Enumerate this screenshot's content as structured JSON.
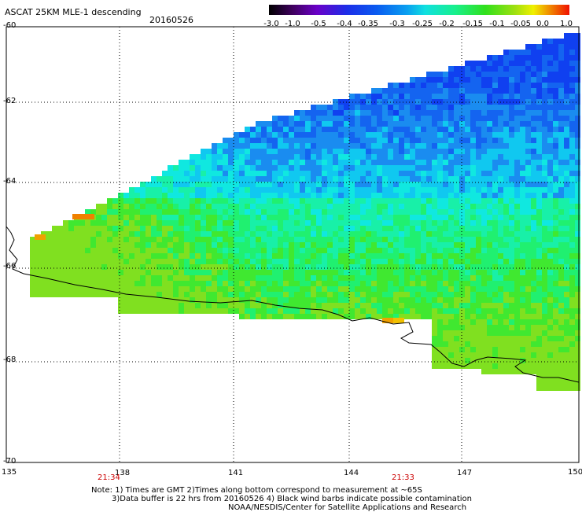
{
  "header": {
    "title": "ASCAT 25KM MLE-1 descending",
    "date": "20160526"
  },
  "colorbar": {
    "labels": [
      "-3.0",
      "-1.0",
      "-0.5",
      "-0.4",
      "-0.35",
      "-0.3",
      "-0.25",
      "-0.2",
      "-0.15",
      "-0.1",
      "-0.05",
      "0.0",
      "1.0"
    ],
    "colors": [
      "#000000",
      "#400060",
      "#6a00c8",
      "#1c2ee8",
      "#0a5cf0",
      "#0aa0f0",
      "#10e0e0",
      "#18f08c",
      "#30e01c",
      "#a0e010",
      "#f0f000",
      "#f08000",
      "#f01000"
    ]
  },
  "map": {
    "lat_labels": [
      "-60",
      "-62",
      "-64",
      "-66",
      "-68",
      "-70"
    ],
    "lon_labels": [
      "135",
      "138",
      "141",
      "144",
      "147",
      "150"
    ],
    "time_labels": [
      "21:34",
      "21:33"
    ]
  },
  "notes": {
    "line1": "Note: 1) Times are GMT 2)Times along bottom correspond to measurement at ~65S",
    "line2": "3)Data buffer is 22 hrs from 20160526 4) Black wind barbs indicate possible contamination",
    "line3": "NOAA/NESDIS/Center for Satellite Applications and Research"
  },
  "colors": {
    "coastline": "#000000",
    "grid": "#000000",
    "time_label": "#cc0000"
  }
}
